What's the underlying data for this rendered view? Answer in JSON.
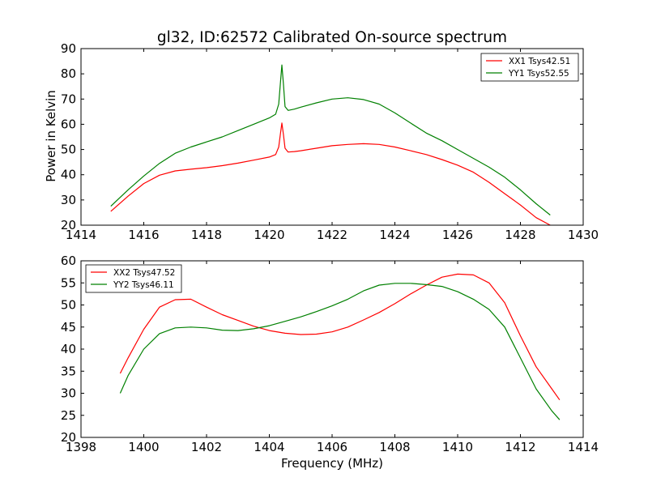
{
  "colors": {
    "red": "#ff0000",
    "green": "#008000"
  },
  "chart_data": [
    {
      "type": "line",
      "title": "gl32, ID:62572 Calibrated On-source spectrum",
      "xlabel": "",
      "ylabel": "Power in Kelvin",
      "xlim": [
        1414,
        1430
      ],
      "ylim": [
        20,
        90
      ],
      "xticks": [
        "1414",
        "1416",
        "1418",
        "1420",
        "1422",
        "1424",
        "1426",
        "1428",
        "1430"
      ],
      "yticks": [
        "20",
        "30",
        "40",
        "50",
        "60",
        "70",
        "80",
        "90"
      ],
      "legend_position": "top-right",
      "series": [
        {
          "name": "XX1 Tsys42.51",
          "color": "#ff0000",
          "x": [
            1414.95,
            1415.5,
            1416.0,
            1416.5,
            1417.0,
            1417.5,
            1418.0,
            1418.5,
            1419.0,
            1419.5,
            1420.0,
            1420.2,
            1420.3,
            1420.35,
            1420.4,
            1420.45,
            1420.5,
            1420.6,
            1420.8,
            1421.0,
            1421.5,
            1422.0,
            1422.5,
            1423.0,
            1423.5,
            1424.0,
            1424.5,
            1425.0,
            1425.5,
            1426.0,
            1426.5,
            1427.0,
            1427.5,
            1428.0,
            1428.5,
            1428.95
          ],
          "y": [
            25.5,
            31.5,
            36.5,
            39.8,
            41.5,
            42.2,
            42.8,
            43.6,
            44.6,
            45.8,
            47.0,
            48.0,
            51.0,
            56.0,
            60.5,
            56.0,
            50.5,
            49.0,
            49.2,
            49.5,
            50.5,
            51.5,
            52.0,
            52.3,
            52.0,
            51.0,
            49.5,
            48.0,
            46.0,
            43.8,
            41.0,
            37.0,
            32.5,
            28.0,
            23.0,
            20.0
          ]
        },
        {
          "name": "YY1 Tsys52.55",
          "color": "#008000",
          "x": [
            1414.95,
            1415.5,
            1416.0,
            1416.5,
            1417.0,
            1417.5,
            1418.0,
            1418.5,
            1419.0,
            1419.5,
            1420.0,
            1420.2,
            1420.3,
            1420.35,
            1420.4,
            1420.45,
            1420.5,
            1420.6,
            1420.8,
            1421.0,
            1421.5,
            1422.0,
            1422.5,
            1423.0,
            1423.5,
            1424.0,
            1424.5,
            1425.0,
            1425.5,
            1426.0,
            1426.5,
            1427.0,
            1427.5,
            1428.0,
            1428.5,
            1428.95
          ],
          "y": [
            27.5,
            34.0,
            39.5,
            44.5,
            48.5,
            51.0,
            53.0,
            55.0,
            57.5,
            60.0,
            62.5,
            64.0,
            68.0,
            76.0,
            83.5,
            76.0,
            67.0,
            65.5,
            66.0,
            66.8,
            68.5,
            70.0,
            70.5,
            69.8,
            68.0,
            64.5,
            60.5,
            56.5,
            53.5,
            50.0,
            46.5,
            43.0,
            39.0,
            34.0,
            28.5,
            24.0
          ]
        }
      ]
    },
    {
      "type": "line",
      "title": "",
      "xlabel": "Frequency (MHz)",
      "ylabel": "",
      "xlim": [
        1398,
        1414
      ],
      "ylim": [
        20,
        60
      ],
      "xticks": [
        "1398",
        "1400",
        "1402",
        "1404",
        "1406",
        "1408",
        "1410",
        "1412",
        "1414"
      ],
      "yticks": [
        "20",
        "25",
        "30",
        "35",
        "40",
        "45",
        "50",
        "55",
        "60"
      ],
      "legend_position": "top-left",
      "series": [
        {
          "name": "XX2 Tsys47.52",
          "color": "#ff0000",
          "x": [
            1399.25,
            1399.5,
            1400.0,
            1400.5,
            1401.0,
            1401.5,
            1402.0,
            1402.5,
            1403.0,
            1403.5,
            1404.0,
            1404.5,
            1405.0,
            1405.5,
            1406.0,
            1406.5,
            1407.0,
            1407.5,
            1408.0,
            1408.5,
            1409.0,
            1409.5,
            1410.0,
            1410.5,
            1411.0,
            1411.5,
            1412.0,
            1412.5,
            1413.0,
            1413.25
          ],
          "y": [
            34.5,
            38.0,
            44.5,
            49.5,
            51.2,
            51.3,
            49.5,
            47.8,
            46.5,
            45.2,
            44.2,
            43.6,
            43.3,
            43.4,
            43.9,
            45.0,
            46.6,
            48.3,
            50.3,
            52.5,
            54.5,
            56.3,
            57.0,
            56.8,
            55.0,
            50.5,
            43.0,
            36.0,
            31.0,
            28.5
          ]
        },
        {
          "name": "YY2 Tsys46.11",
          "color": "#008000",
          "x": [
            1399.25,
            1399.5,
            1400.0,
            1400.5,
            1401.0,
            1401.5,
            1402.0,
            1402.5,
            1403.0,
            1403.5,
            1404.0,
            1404.5,
            1405.0,
            1405.5,
            1406.0,
            1406.5,
            1407.0,
            1407.5,
            1408.0,
            1408.5,
            1409.0,
            1409.5,
            1410.0,
            1410.5,
            1411.0,
            1411.5,
            1412.0,
            1412.5,
            1413.0,
            1413.25
          ],
          "y": [
            30.0,
            34.0,
            40.0,
            43.5,
            44.8,
            45.0,
            44.8,
            44.3,
            44.2,
            44.6,
            45.3,
            46.3,
            47.3,
            48.5,
            49.8,
            51.3,
            53.2,
            54.5,
            54.9,
            54.9,
            54.6,
            54.2,
            53.0,
            51.3,
            49.0,
            45.0,
            38.0,
            31.0,
            26.0,
            24.0
          ]
        }
      ]
    }
  ]
}
